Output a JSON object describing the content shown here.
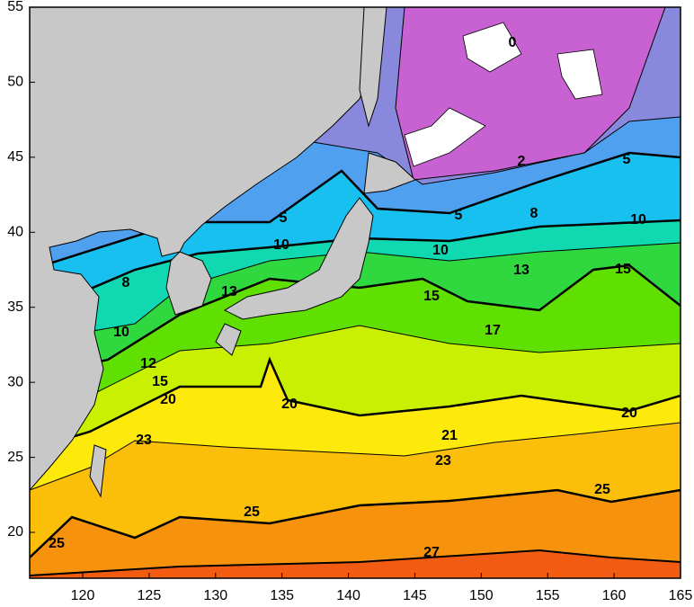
{
  "map": {
    "x_ticks": [
      120,
      125,
      130,
      135,
      140,
      145,
      150,
      155,
      160,
      165
    ],
    "y_ticks": [
      20,
      25,
      30,
      35,
      40,
      45,
      50,
      55
    ],
    "contour_labels": [
      0,
      2,
      5,
      5,
      5,
      8,
      8,
      10,
      10,
      10,
      10,
      13,
      13,
      12,
      15,
      15,
      15,
      17,
      20,
      20,
      20,
      21,
      23,
      23,
      25,
      25,
      25,
      27
    ]
  }
}
